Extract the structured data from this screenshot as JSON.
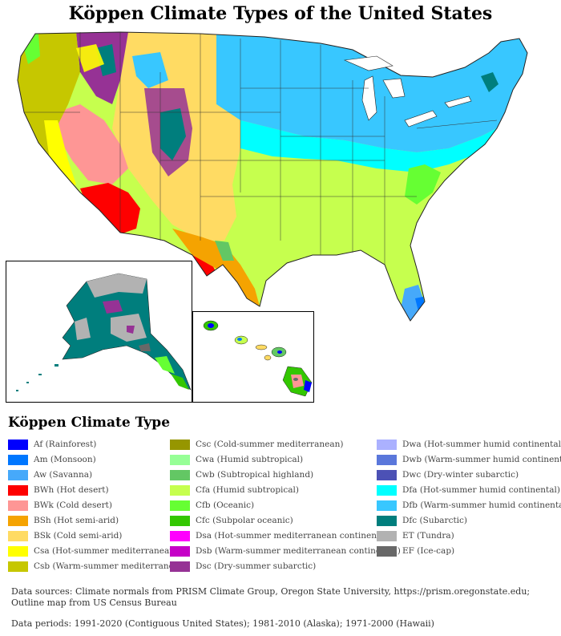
{
  "title": "Köppen Climate Types of the United States",
  "legend": {
    "title": "Köppen Climate Type",
    "columns": [
      [
        {
          "code": "Af",
          "label": "Af (Rainforest)",
          "color": "#0000fe"
        },
        {
          "code": "Am",
          "label": "Am (Monsoon)",
          "color": "#0077ff"
        },
        {
          "code": "Aw",
          "label": "Aw (Savanna)",
          "color": "#46a9fa"
        },
        {
          "code": "BWh",
          "label": "BWh (Hot desert)",
          "color": "#fe0000"
        },
        {
          "code": "BWk",
          "label": "BWk (Cold desert)",
          "color": "#fe9695"
        },
        {
          "code": "BSh",
          "label": "BSh (Hot semi-arid)",
          "color": "#f5a301"
        },
        {
          "code": "BSk",
          "label": "BSk (Cold semi-arid)",
          "color": "#ffdb63"
        },
        {
          "code": "Csa",
          "label": "Csa (Hot-summer mediterranean)",
          "color": "#ffff00"
        },
        {
          "code": "Csb",
          "label": "Csb (Warm-summer mediterranean)",
          "color": "#c6c700"
        }
      ],
      [
        {
          "code": "Csc",
          "label": "Csc (Cold-summer mediterranean)",
          "color": "#969600"
        },
        {
          "code": "Cwa",
          "label": "Cwa (Humid subtropical)",
          "color": "#96ff96"
        },
        {
          "code": "Cwb",
          "label": "Cwb (Subtropical highland)",
          "color": "#63c764"
        },
        {
          "code": "Cfa",
          "label": "Cfa (Humid subtropical)",
          "color": "#c6ff4e"
        },
        {
          "code": "Cfb",
          "label": "Cfb (Oceanic)",
          "color": "#66ff33"
        },
        {
          "code": "Cfc",
          "label": "Cfc (Subpolar oceanic)",
          "color": "#33c701"
        },
        {
          "code": "Dsa",
          "label": "Dsa (Hot-summer mediterranean continental)",
          "color": "#ff00fe"
        },
        {
          "code": "Dsb",
          "label": "Dsb (Warm-summer mediterranean continental)",
          "color": "#c600c7"
        },
        {
          "code": "Dsc",
          "label": "Dsc (Dry-summer subarctic)",
          "color": "#963295"
        }
      ],
      [
        {
          "code": "Dwa",
          "label": "Dwa (Hot-summer humid continental)",
          "color": "#abb1ff"
        },
        {
          "code": "Dwb",
          "label": "Dwb (Warm-summer humid continental)",
          "color": "#5a77db"
        },
        {
          "code": "Dwc",
          "label": "Dwc (Dry-winter subarctic)",
          "color": "#4c51b5"
        },
        {
          "code": "Dfa",
          "label": "Dfa (Hot-summer humid continental)",
          "color": "#00ffff"
        },
        {
          "code": "Dfb",
          "label": "Dfb (Warm-summer humid continental)",
          "color": "#38c7ff"
        },
        {
          "code": "Dfc",
          "label": "Dfc (Subarctic)",
          "color": "#007e7d"
        },
        {
          "code": "ET",
          "label": "ET (Tundra)",
          "color": "#b2b2b2"
        },
        {
          "code": "EF",
          "label": "EF (Ice-cap)",
          "color": "#686868"
        }
      ]
    ]
  },
  "footer": {
    "sources": "Data sources: Climate normals from PRISM Climate Group, Oregon State University, https://prism.oregonstate.edu; Outline map from US Census Bureau",
    "periods": "Data periods: 1991-2020 (Contiguous United States); 1981-2010 (Alaska); 1971-2000 (Hawaii)"
  }
}
